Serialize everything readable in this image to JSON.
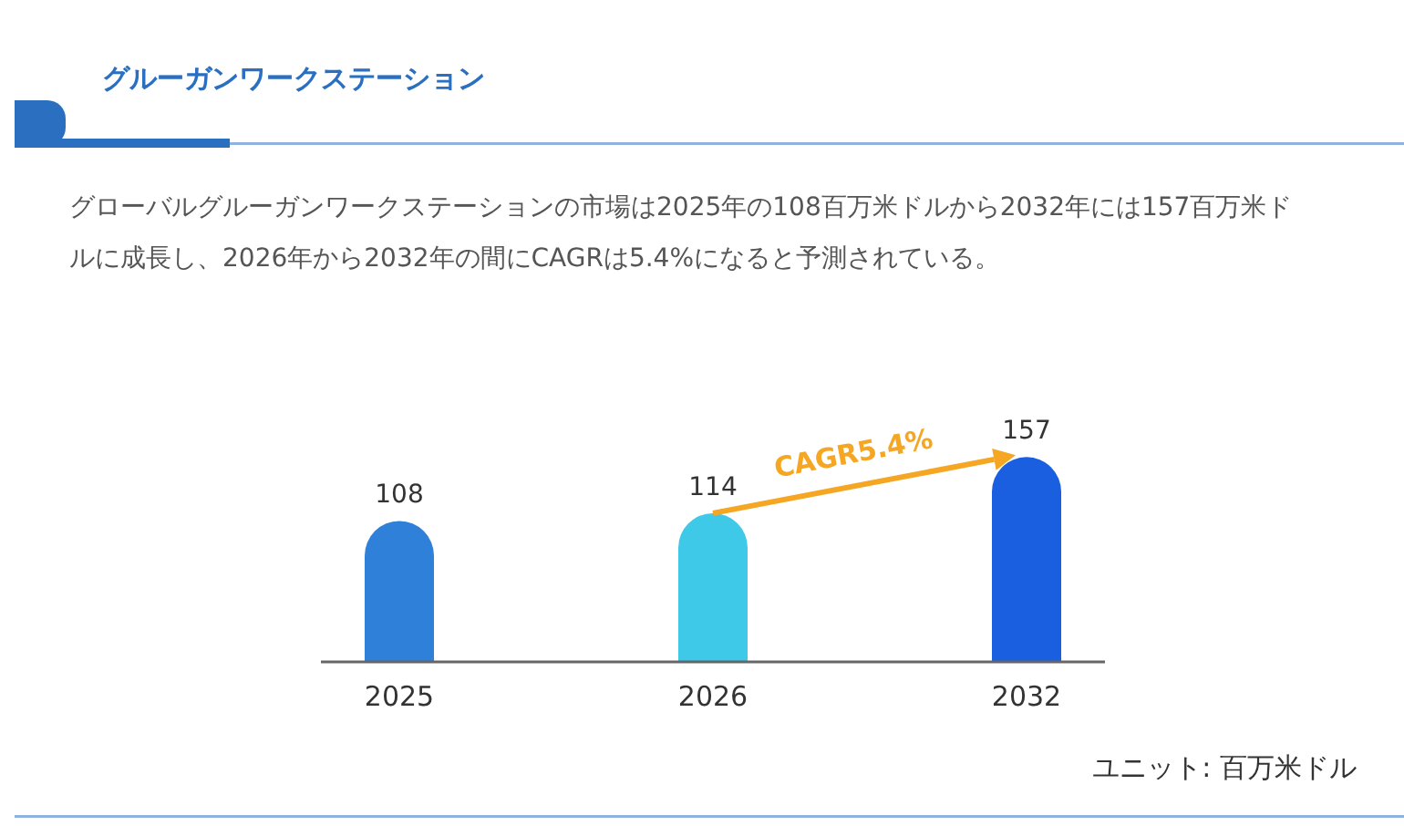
{
  "chart_data": {
    "type": "bar",
    "title": "グルーガンワークステーション",
    "subtitle": "グローバルグルーガンワークステーションの市場は2025年の108百万米ドルから2032年には157百万米ドルに成長し、2026年から2032年の間にCAGRは5.4%になると予測されている。",
    "categories": [
      "2025",
      "2026",
      "2032"
    ],
    "values": [
      108,
      114,
      157
    ],
    "colors": [
      "#2f80d8",
      "#3ec9e8",
      "#1a5fe0"
    ],
    "data_labels": true,
    "annotations": [
      "CAGR5.4%",
      "ユニット: 百万米ドル"
    ]
  }
}
